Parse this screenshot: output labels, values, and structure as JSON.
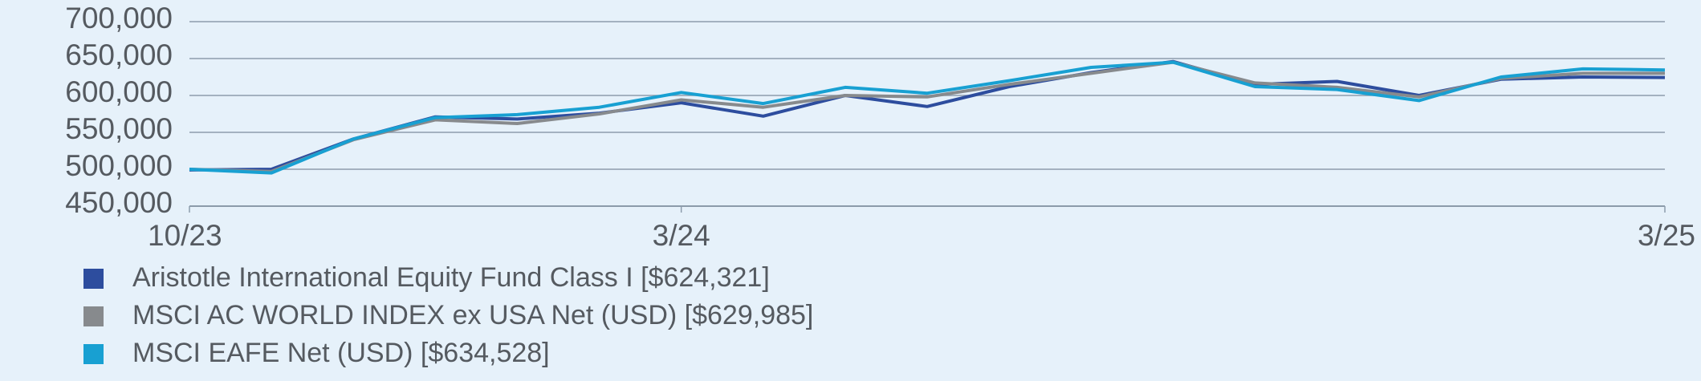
{
  "chart_data": {
    "type": "line",
    "categories": [
      "10/23",
      null,
      null,
      null,
      null,
      null,
      "3/24",
      null,
      null,
      null,
      null,
      null,
      null,
      null,
      null,
      null,
      null,
      null,
      "3/25"
    ],
    "series": [
      {
        "name": "Aristotle International Equity Fund Class I [$624,321]",
        "color": "#2d4d9e",
        "values": [
          499000,
          500000,
          541000,
          571000,
          568000,
          576000,
          590000,
          572000,
          600000,
          585000,
          612000,
          631000,
          646000,
          615000,
          619000,
          600000,
          622000,
          625000,
          624321
        ]
      },
      {
        "name": "MSCI AC WORLD INDEX ex USA Net (USD) [$629,985]",
        "color": "#878a8d",
        "values": [
          500000,
          497000,
          540000,
          567000,
          562000,
          575000,
          594000,
          584000,
          600000,
          598000,
          615000,
          630000,
          645000,
          617000,
          611000,
          598000,
          623000,
          630000,
          629985
        ]
      },
      {
        "name": "MSCI EAFE Net (USD) [$634,528]",
        "color": "#18a0d2",
        "values": [
          500000,
          495000,
          541000,
          570000,
          574000,
          584000,
          604000,
          589000,
          611000,
          603000,
          620000,
          638000,
          645000,
          612000,
          608000,
          593000,
          625000,
          636000,
          634528
        ]
      }
    ],
    "ylim": [
      450000,
      700000
    ],
    "yticks": [
      {
        "value": 450000,
        "label": "450,000"
      },
      {
        "value": 500000,
        "label": "500,000"
      },
      {
        "value": 550000,
        "label": "550,000"
      },
      {
        "value": 600000,
        "label": "600,000"
      },
      {
        "value": 650000,
        "label": "650,000"
      },
      {
        "value": 700000,
        "label": "700,000"
      }
    ],
    "grid": true
  }
}
